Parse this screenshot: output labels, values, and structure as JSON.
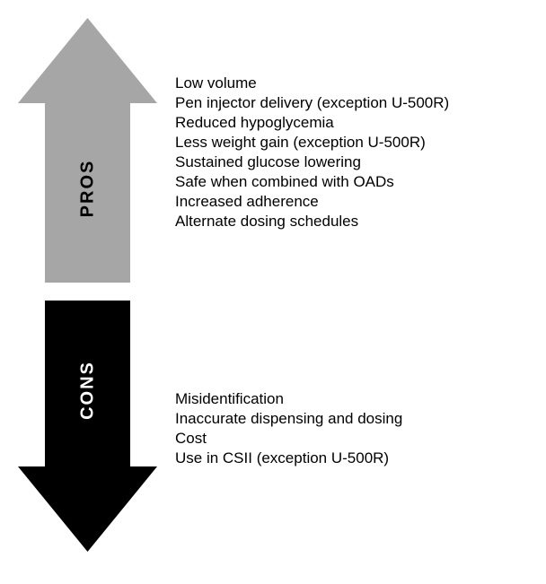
{
  "diagram": {
    "type": "infographic",
    "background_color": "#ffffff",
    "text_color": "#000000",
    "font_family": "Arial, Helvetica, sans-serif",
    "pros": {
      "label": "PROS",
      "label_fontsize": 20,
      "label_color": "#000000",
      "arrow_color": "#a6a6a6",
      "arrow_direction": "up",
      "arrow_width": 155,
      "arrow_height": 295,
      "arrow_head_height": 95,
      "arrow_shaft_width": 95,
      "label_top_offset": 190,
      "items_fontsize": 17,
      "items": [
        "Low volume",
        "Pen injector delivery (exception U-500R)",
        "Reduced hypoglycemia",
        "Less weight gain (exception U-500R)",
        "Sustained glucose lowering",
        "Safe when combined with OADs",
        "Increased adherence",
        "Alternate dosing schedules"
      ]
    },
    "cons": {
      "label": "CONS",
      "label_fontsize": 20,
      "label_color": "#ffffff",
      "arrow_color": "#000000",
      "arrow_direction": "down",
      "arrow_width": 155,
      "arrow_height": 280,
      "arrow_head_height": 95,
      "arrow_shaft_width": 95,
      "label_top_offset": 100,
      "items_fontsize": 17,
      "items": [
        "Misidentification",
        "Inaccurate dispensing and dosing",
        "Cost",
        "Use in CSII (exception U-500R)"
      ]
    },
    "sections_gap": 15
  }
}
